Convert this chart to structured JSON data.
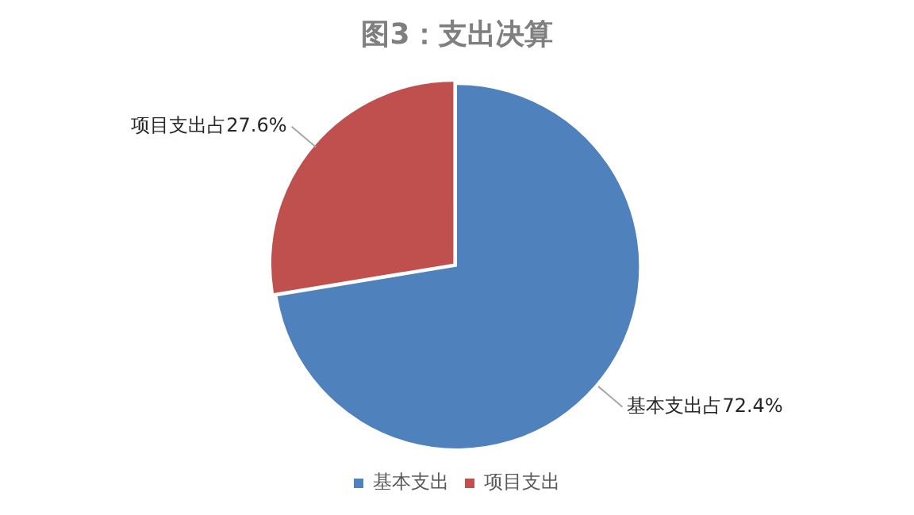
{
  "chart_data": {
    "type": "pie",
    "title": "图3：支出决算",
    "categories": [
      "基本支出",
      "项目支出"
    ],
    "values": [
      72.4,
      27.6
    ],
    "colors": [
      "#4f81bd",
      "#c0504d"
    ],
    "value_labels": [
      "基本支出占72.4%",
      "项目支出占27.6%"
    ],
    "legend": "bottom"
  }
}
